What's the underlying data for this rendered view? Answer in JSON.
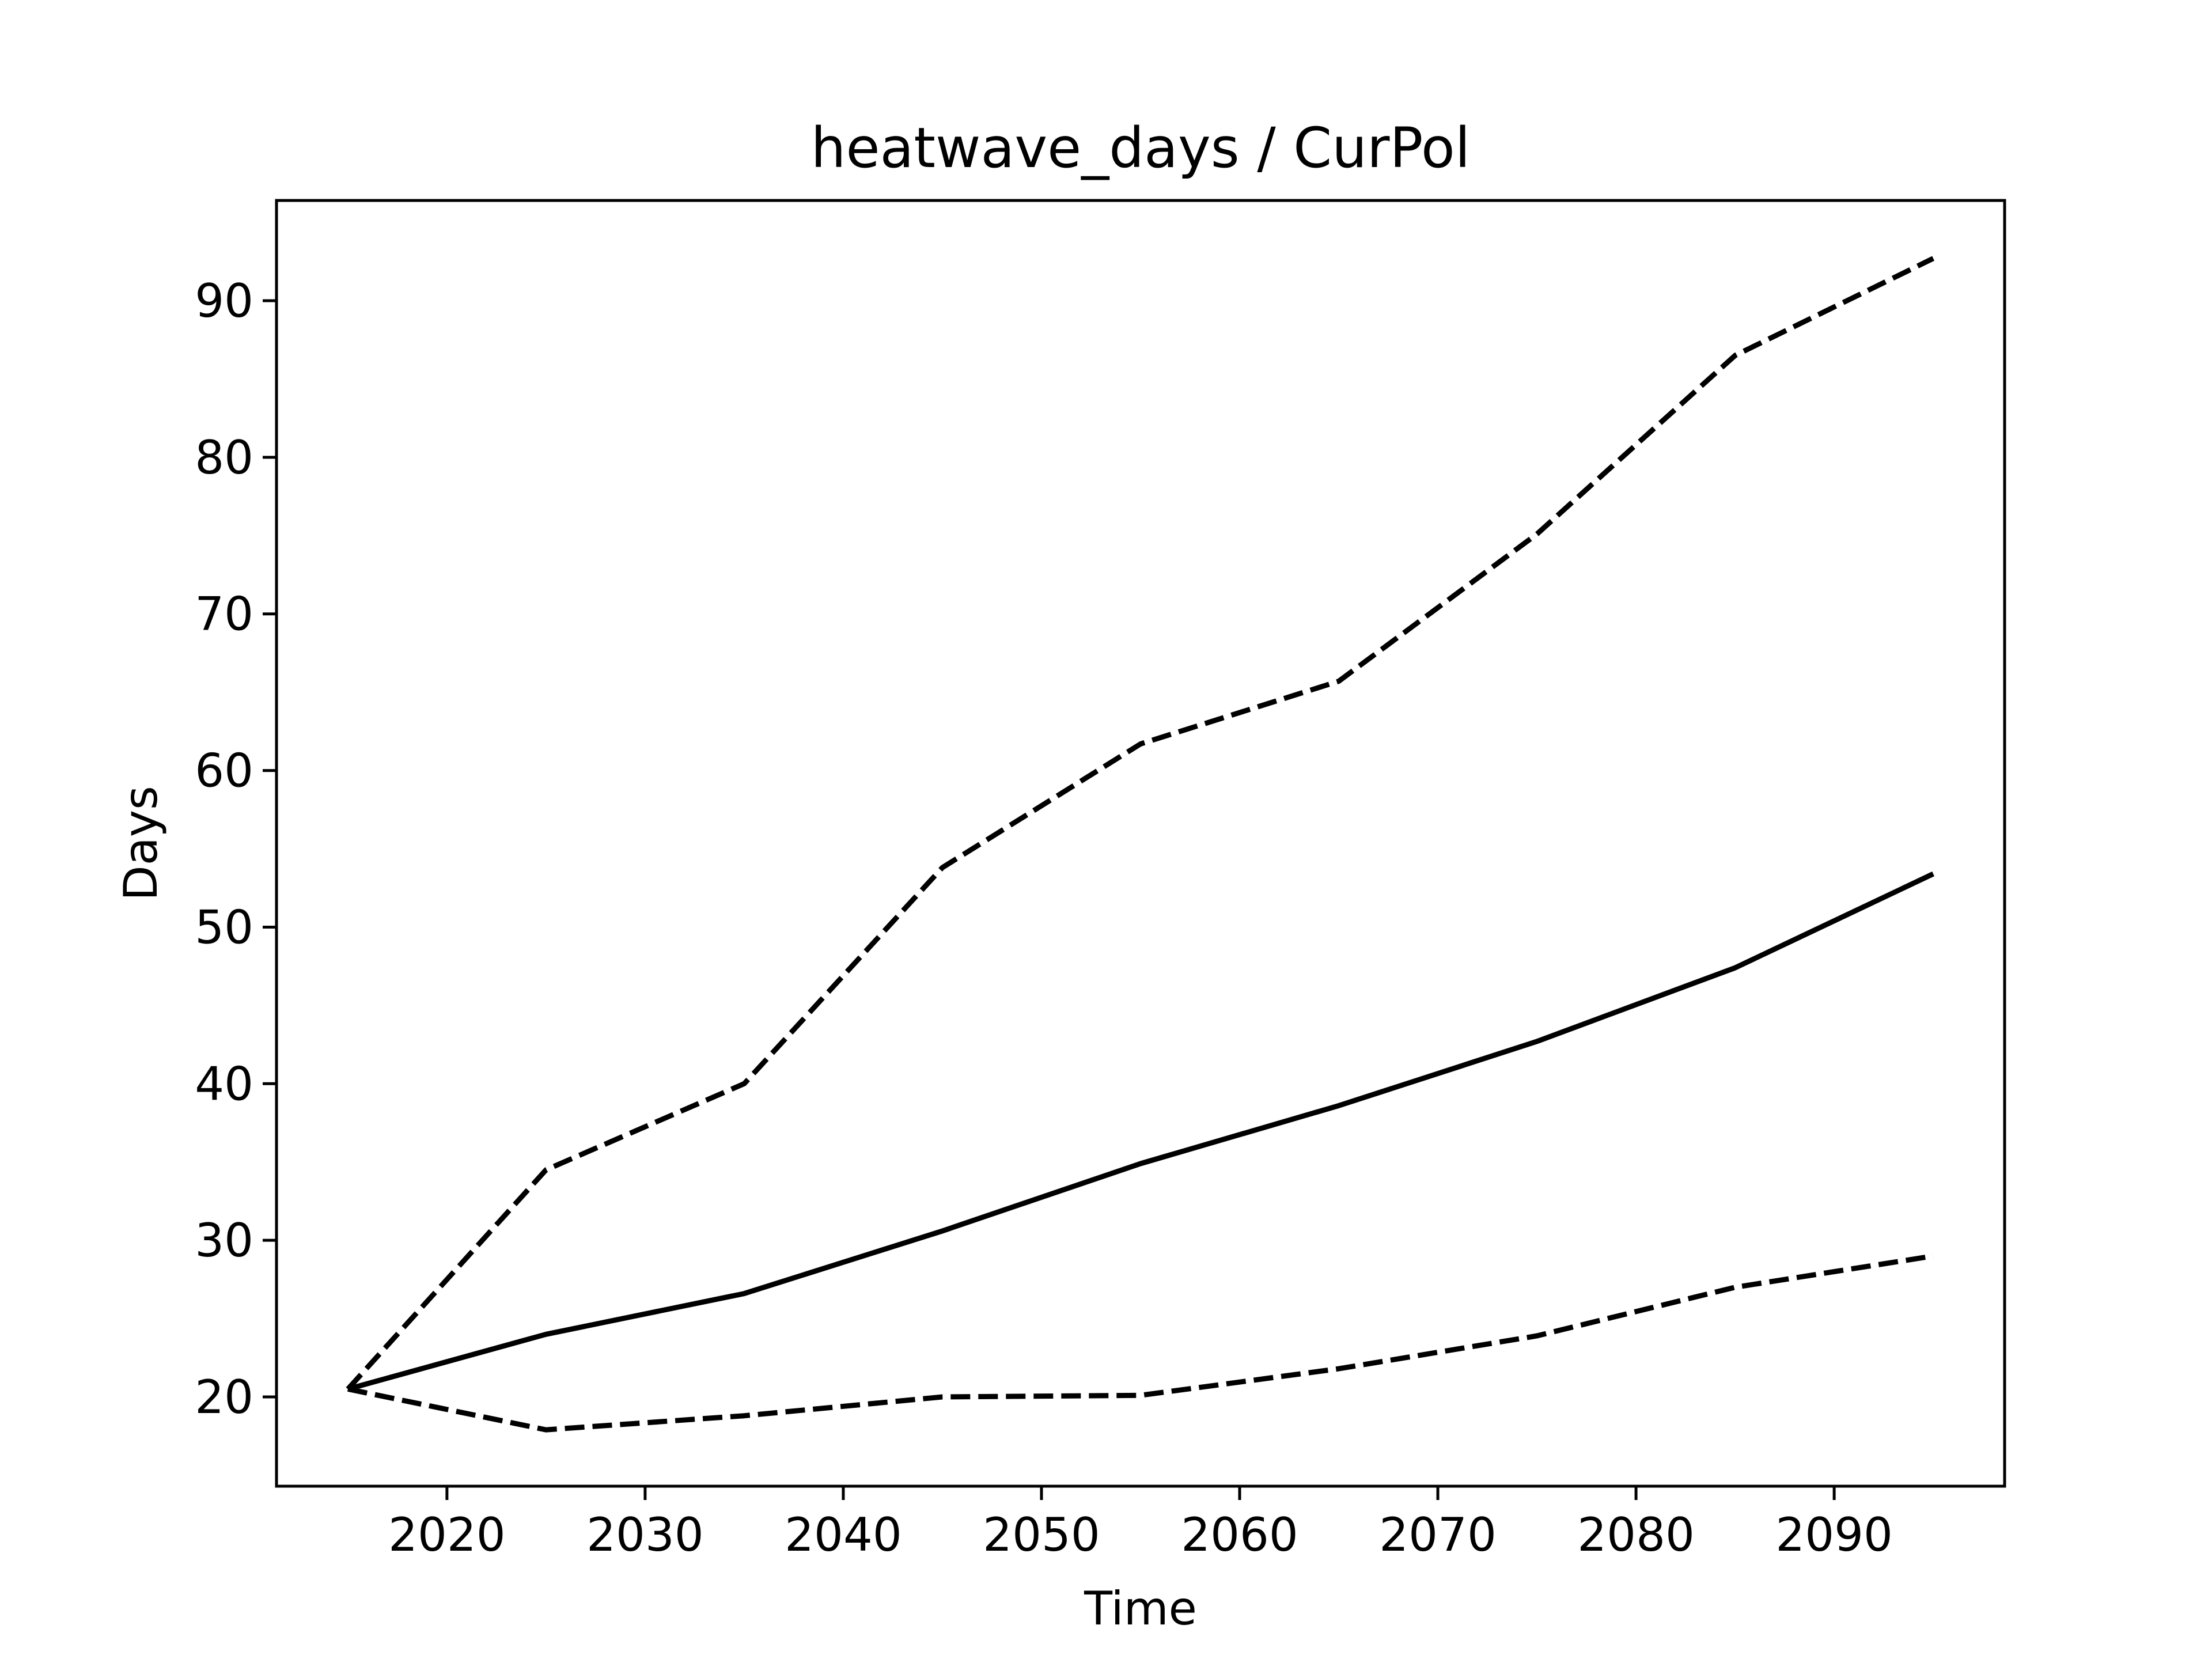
{
  "chart_data": {
    "type": "line",
    "title": "heatwave_days / CurPol",
    "xlabel": "Time",
    "ylabel": "Days",
    "xlim": [
      2011.4,
      2098.6
    ],
    "ylim": [
      14.3,
      96.4
    ],
    "xticks": [
      2020,
      2030,
      2040,
      2050,
      2060,
      2070,
      2080,
      2090
    ],
    "yticks": [
      20,
      30,
      40,
      50,
      60,
      70,
      80,
      90
    ],
    "grid": false,
    "legend": "none",
    "line_color": "#000000",
    "x": [
      2015,
      2025,
      2035,
      2045,
      2055,
      2065,
      2075,
      2085,
      2095
    ],
    "series": [
      {
        "style": "dashed",
        "values": [
          20.5,
          34.5,
          40.0,
          53.8,
          61.7,
          65.7,
          75.1,
          86.5,
          92.7
        ]
      },
      {
        "style": "solid",
        "values": [
          20.5,
          24.0,
          26.6,
          30.6,
          34.9,
          38.6,
          42.7,
          47.4,
          53.4
        ]
      },
      {
        "style": "dashed",
        "values": [
          20.5,
          17.9,
          18.8,
          20.0,
          20.1,
          21.8,
          23.9,
          27.0,
          29.0
        ]
      }
    ]
  }
}
